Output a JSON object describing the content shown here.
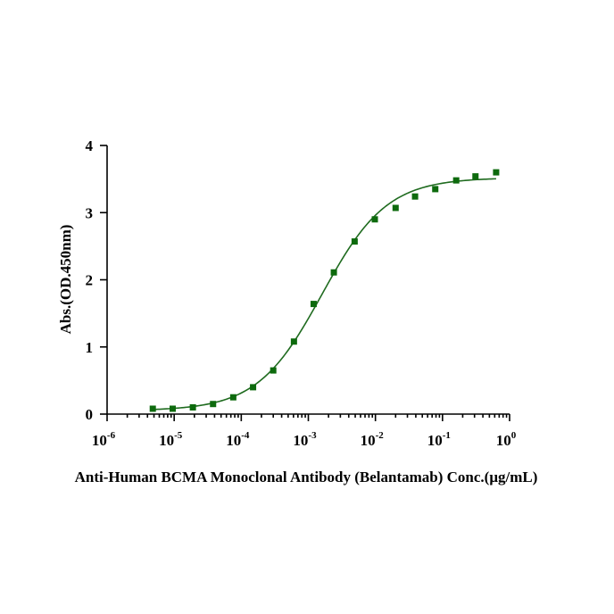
{
  "chart_data": {
    "type": "scatter",
    "xscale": "log",
    "xlabel": "Anti-Human BCMA Monoclonal Antibody (Belantamab) Conc.(μg/mL)",
    "ylabel": "Abs.(OD.450nm)",
    "xlim": [
      1e-06,
      1
    ],
    "ylim": [
      0,
      4
    ],
    "x_ticks": [
      {
        "base": "10",
        "exp": "-6"
      },
      {
        "base": "10",
        "exp": "-5"
      },
      {
        "base": "10",
        "exp": "-4"
      },
      {
        "base": "10",
        "exp": "-3"
      },
      {
        "base": "10",
        "exp": "-2"
      },
      {
        "base": "10",
        "exp": "-1"
      },
      {
        "base": "10",
        "exp": "0"
      }
    ],
    "y_ticks": [
      "0",
      "1",
      "2",
      "3",
      "4"
    ],
    "grid": false,
    "marker_color": "#0d6a0d",
    "line_color": "#1f6b1f",
    "series": [
      {
        "x": [
          4.8e-06,
          9.5e-06,
          1.9e-05,
          3.8e-05,
          7.6e-05,
          0.00015,
          0.0003,
          0.00061,
          0.0012,
          0.0024,
          0.0049,
          0.0098,
          0.02,
          0.039,
          0.078,
          0.16,
          0.31,
          0.63
        ],
        "y": [
          0.08,
          0.08,
          0.1,
          0.15,
          0.25,
          0.4,
          0.65,
          1.08,
          1.64,
          2.11,
          2.57,
          2.9,
          3.07,
          3.24,
          3.35,
          3.48,
          3.54,
          3.6
        ]
      }
    ],
    "fit": {
      "type": "4PL",
      "bottom": 0.05,
      "top": 3.52,
      "ec50": 0.0016,
      "hill": 0.9
    }
  }
}
